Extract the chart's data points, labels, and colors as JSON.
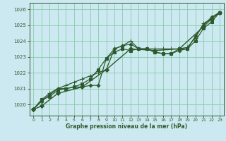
{
  "background_color": "#cce8f0",
  "grid_color": "#88ccaa",
  "line_color": "#2d5a2d",
  "title": "Graphe pression niveau de la mer (hPa)",
  "xlim": [
    -0.5,
    23.5
  ],
  "ylim": [
    1019.3,
    1026.4
  ],
  "yticks": [
    1020,
    1021,
    1022,
    1023,
    1024,
    1025,
    1026
  ],
  "xticks": [
    0,
    1,
    2,
    3,
    4,
    5,
    6,
    7,
    8,
    9,
    10,
    11,
    12,
    13,
    14,
    15,
    16,
    17,
    18,
    19,
    20,
    21,
    22,
    23
  ],
  "series": [
    {
      "x": [
        0,
        1,
        2,
        3,
        4,
        5,
        6,
        7,
        8,
        9,
        10,
        11,
        12,
        13,
        14,
        15,
        16,
        17,
        18,
        19,
        20,
        21,
        22,
        23
      ],
      "y": [
        1019.7,
        1020.3,
        1020.7,
        1021.0,
        1021.2,
        1021.4,
        1021.6,
        1021.8,
        1022.0,
        1022.2,
        1023.5,
        1023.7,
        1024.0,
        1023.5,
        1023.5,
        1023.5,
        1023.5,
        1023.5,
        1023.5,
        1023.6,
        1024.2,
        1025.1,
        1025.4,
        1025.8
      ],
      "marker": "+",
      "ms": 4,
      "lw": 0.9
    },
    {
      "x": [
        0,
        1,
        2,
        3,
        4,
        5,
        6,
        7,
        8,
        9,
        10,
        11,
        12,
        13,
        14,
        15,
        16,
        17,
        18,
        19,
        20,
        21,
        22,
        23
      ],
      "y": [
        1019.7,
        1020.2,
        1020.6,
        1021.0,
        1021.0,
        1021.1,
        1021.1,
        1021.2,
        1021.2,
        1022.9,
        1023.5,
        1023.7,
        1023.8,
        1023.5,
        1023.5,
        1023.3,
        1023.2,
        1023.2,
        1023.4,
        1023.5,
        1024.3,
        1025.0,
        1025.5,
        1025.8
      ],
      "marker": "D",
      "ms": 2.5,
      "lw": 0.9
    },
    {
      "x": [
        0,
        1,
        2,
        3,
        4,
        5,
        6,
        7,
        8,
        9,
        10,
        11,
        12,
        13,
        14,
        15,
        16,
        17,
        18,
        19,
        20,
        21,
        22,
        23
      ],
      "y": [
        1019.7,
        1020.3,
        1020.5,
        1020.9,
        1021.0,
        1021.1,
        1021.3,
        1021.6,
        1022.2,
        1022.9,
        1023.3,
        1023.5,
        1023.4,
        1023.5,
        1023.5,
        1023.3,
        1023.2,
        1023.2,
        1023.5,
        1023.5,
        1024.0,
        1024.8,
        1025.2,
        1025.8
      ],
      "marker": "s",
      "ms": 2.5,
      "lw": 0.9
    },
    {
      "x": [
        0,
        1,
        3,
        6,
        9,
        12,
        15,
        18,
        21,
        22,
        23
      ],
      "y": [
        1019.7,
        1019.9,
        1020.7,
        1021.1,
        1022.2,
        1023.5,
        1023.4,
        1023.5,
        1024.9,
        1025.4,
        1025.8
      ],
      "marker": "D",
      "ms": 3,
      "lw": 1.0
    }
  ]
}
